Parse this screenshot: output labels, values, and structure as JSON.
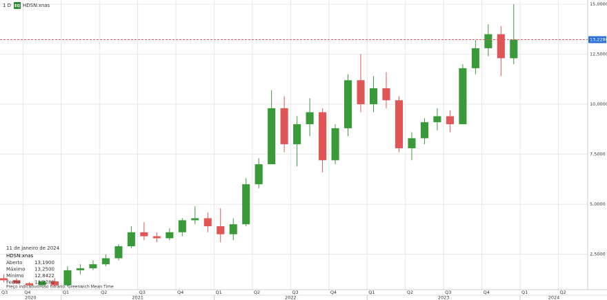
{
  "chart_data": {
    "type": "candlestick",
    "interval": "1 D",
    "badge": "EQ",
    "symbol": "HDSN:xnas",
    "x": [
      1.5,
      2.5,
      3.5,
      4.5,
      5.5,
      6.5,
      7.5,
      8.5,
      9.5,
      10.5,
      11.5,
      12.5,
      13.5,
      14.5,
      15.5,
      16.5,
      17.5,
      18.5,
      19.5,
      20.5,
      21.5,
      22.5,
      23.5,
      24.5,
      25.5,
      26.5,
      27.5,
      28.5,
      29.5,
      30.5,
      31.5,
      32.5,
      33.5,
      34.5,
      35.5,
      36.5,
      37.5,
      38.5,
      39.5,
      40.5,
      41.5
    ],
    "open": [
      1.3,
      1.2,
      1.05,
      0.95,
      1.15,
      0.95,
      1.7,
      1.8,
      2.0,
      2.3,
      2.9,
      3.6,
      3.4,
      3.3,
      3.6,
      4.2,
      4.3,
      3.9,
      3.5,
      4.0,
      6.0,
      7.0,
      9.8,
      8.0,
      9.0,
      9.6,
      7.2,
      8.8,
      11.2,
      10.0,
      10.8,
      10.2,
      7.8,
      8.3,
      9.1,
      9.4,
      9.0,
      11.8,
      12.8,
      13.5,
      12.3
    ],
    "high": [
      1.5,
      1.3,
      1.1,
      1.2,
      1.3,
      1.9,
      2.0,
      2.2,
      2.5,
      3.0,
      3.9,
      4.1,
      3.6,
      3.8,
      4.3,
      4.9,
      4.6,
      4.8,
      4.3,
      6.3,
      7.3,
      10.7,
      10.4,
      9.4,
      10.3,
      9.8,
      9.0,
      11.5,
      12.5,
      11.4,
      11.6,
      10.4,
      8.6,
      9.3,
      9.8,
      9.7,
      12.0,
      13.2,
      14.0,
      13.9,
      15.0
    ],
    "low": [
      1.1,
      1.0,
      0.9,
      0.85,
      0.9,
      0.9,
      1.5,
      1.7,
      1.9,
      2.2,
      2.8,
      3.2,
      3.1,
      3.2,
      3.4,
      4.0,
      3.6,
      3.1,
      3.2,
      3.9,
      5.8,
      7.0,
      7.6,
      6.9,
      8.4,
      6.6,
      7.0,
      8.4,
      9.6,
      9.6,
      9.8,
      7.6,
      7.2,
      8.0,
      8.7,
      8.6,
      9.0,
      11.5,
      12.4,
      11.4,
      12.0
    ],
    "close": [
      1.2,
      1.05,
      0.95,
      1.15,
      0.95,
      1.7,
      1.8,
      2.0,
      2.3,
      2.9,
      3.6,
      3.4,
      3.3,
      3.6,
      4.2,
      4.3,
      3.9,
      3.5,
      4.0,
      6.0,
      7.0,
      9.8,
      8.0,
      9.0,
      9.6,
      7.2,
      8.8,
      11.2,
      10.0,
      10.8,
      10.2,
      7.8,
      8.3,
      9.1,
      9.4,
      9.0,
      11.8,
      12.8,
      13.5,
      12.3,
      13.228
    ],
    "up_color": "#3a9a3a",
    "down_color": "#e05555",
    "xlim": [
      1.2,
      47.3
    ],
    "xticks": [
      {
        "value": 0,
        "label": "Q3"
      },
      {
        "value": 3,
        "label": "Q4"
      },
      {
        "value": 6,
        "label": "Q1"
      },
      {
        "value": 9,
        "label": "Q2"
      },
      {
        "value": 12,
        "label": "Q3"
      },
      {
        "value": 15,
        "label": "Q4"
      },
      {
        "value": 18,
        "label": "Q1"
      },
      {
        "value": 21,
        "label": "Q2"
      },
      {
        "value": 24,
        "label": "Q3"
      },
      {
        "value": 27,
        "label": "Q4"
      },
      {
        "value": 30,
        "label": "Q1"
      },
      {
        "value": 33,
        "label": "Q2"
      },
      {
        "value": 36,
        "label": "Q3"
      },
      {
        "value": 39,
        "label": "Q4"
      },
      {
        "value": 42,
        "label": "Q1"
      },
      {
        "value": 45,
        "label": "Q2"
      }
    ],
    "x_years": [
      "2020",
      "2021",
      "2022",
      "2023",
      "2024"
    ],
    "ylim": [
      0.73,
      15.21
    ],
    "yticks": [
      {
        "value": 2.5,
        "label": "2,5000"
      },
      {
        "value": 5,
        "label": "5,0000"
      },
      {
        "value": 7.5,
        "label": "7,5000"
      },
      {
        "value": 10,
        "label": "10,0000"
      },
      {
        "value": 12.5,
        "label": "12,5000"
      },
      {
        "value": 15,
        "label": "15,0000"
      }
    ],
    "last_price": {
      "value": 13.228,
      "label": "13,2280"
    },
    "grid": true,
    "info": {
      "date": "11 de janeiro de 2024",
      "symbol": "HDSN:xnas",
      "rows": [
        [
          "Aberto",
          "13,1900"
        ],
        [
          "Máximo",
          "13,2500"
        ],
        [
          "Mínimo",
          "12,8422"
        ],
        [
          "Fecho",
          "13,2280"
        ]
      ],
      "footer": [
        "Preço indicativo",
        "Fuso horário: Greenwich Mean Time"
      ]
    }
  }
}
